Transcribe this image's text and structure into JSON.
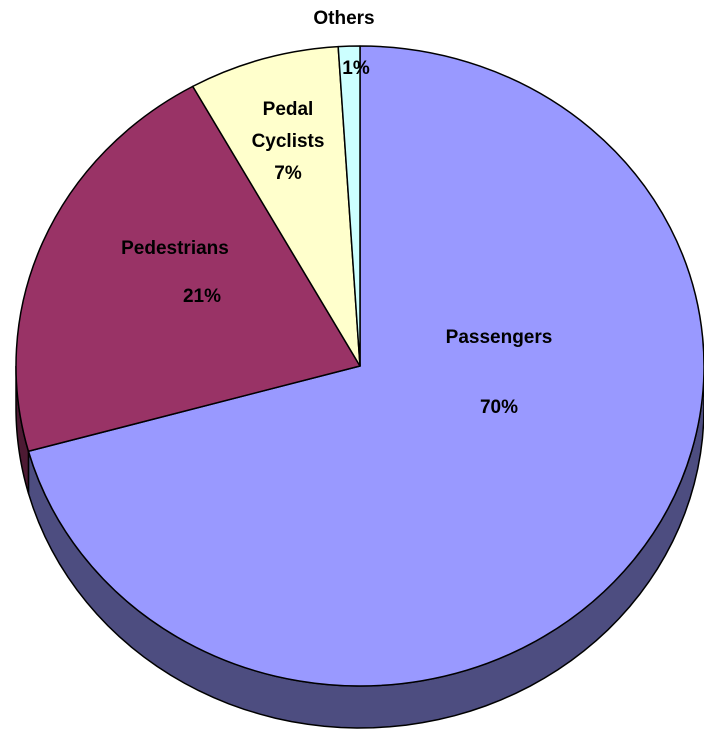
{
  "chart_data": {
    "type": "pie",
    "title": "",
    "three_d": true,
    "categories": [
      "Passengers",
      "Pedestrians",
      "Pedal Cyclists",
      "Others"
    ],
    "values": [
      70,
      21,
      7,
      1
    ],
    "data_labels": [
      "70%",
      "21%",
      "7%",
      "1%"
    ],
    "colors": [
      "#9999ff",
      "#993366",
      "#ffffcc",
      "#ccffff"
    ],
    "side_colors": [
      "#4d4d80",
      "#4d1a33",
      "#808066",
      "#668080"
    ],
    "legend": "none"
  }
}
